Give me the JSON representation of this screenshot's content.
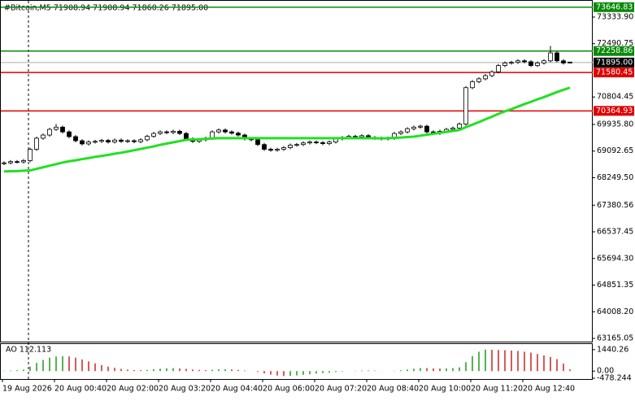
{
  "chart_data": {
    "type": "candlestick",
    "title": "#Bitcoin,M5  71908.94 71908.94 71860.26 71895.00",
    "open": [
      68700,
      68720,
      68760,
      68750,
      68790,
      69150,
      69500,
      69600,
      69780,
      69850,
      69700,
      69550,
      69420,
      69320,
      69380,
      69400,
      69430,
      69380,
      69440,
      69400,
      69420,
      69390,
      69450,
      69560,
      69650,
      69700,
      69680,
      69720,
      69650,
      69480,
      69400,
      69450,
      69500,
      69700,
      69760,
      69700,
      69660,
      69600,
      69480,
      69450,
      69300,
      69150,
      69120,
      69150,
      69200,
      69280,
      69300,
      69350,
      69380,
      69360,
      69330,
      69380,
      69480,
      69520,
      69560,
      69540,
      69580,
      69520,
      69500,
      69480,
      69500,
      69650,
      69700,
      69800,
      69850,
      69880,
      69700,
      69650,
      69720,
      69780,
      69820,
      69950,
      71100,
      71290,
      71380,
      71480,
      71600,
      71800,
      71880,
      71900,
      71950,
      71920,
      71800,
      71880,
      71950,
      72200,
      71950,
      71908.94
    ],
    "high": [
      68770,
      68810,
      68810,
      68840,
      69200,
      69550,
      69650,
      69830,
      69950,
      69900,
      69750,
      69600,
      69470,
      69430,
      69450,
      69480,
      69480,
      69490,
      69490,
      69470,
      69470,
      69500,
      69610,
      69700,
      69750,
      69750,
      69770,
      69770,
      69700,
      69530,
      69500,
      69550,
      69750,
      69810,
      69810,
      69750,
      69710,
      69650,
      69530,
      69500,
      69350,
      69200,
      69200,
      69250,
      69330,
      69350,
      69400,
      69430,
      69430,
      69410,
      69430,
      69530,
      69570,
      69610,
      69610,
      69630,
      69630,
      69570,
      69550,
      69550,
      69700,
      69750,
      69850,
      69900,
      69930,
      69930,
      69750,
      69770,
      69830,
      69870,
      70000,
      71150,
      71340,
      71430,
      71530,
      71650,
      71850,
      71930,
      71950,
      72000,
      72000,
      71970,
      71930,
      72000,
      72420,
      72250,
      72000,
      71908.94
    ],
    "low": [
      68650,
      68670,
      68700,
      68700,
      68740,
      69100,
      69450,
      69550,
      69730,
      69650,
      69500,
      69370,
      69270,
      69270,
      69330,
      69350,
      69330,
      69330,
      69350,
      69350,
      69340,
      69340,
      69400,
      69510,
      69600,
      69630,
      69630,
      69600,
      69430,
      69350,
      69350,
      69400,
      69450,
      69650,
      69650,
      69610,
      69550,
      69430,
      69400,
      69250,
      69100,
      69070,
      69070,
      69100,
      69150,
      69230,
      69250,
      69300,
      69310,
      69280,
      69280,
      69330,
      69430,
      69470,
      69490,
      69490,
      69470,
      69450,
      69430,
      69430,
      69450,
      69600,
      69650,
      69750,
      69800,
      69650,
      69600,
      69600,
      69670,
      69730,
      69770,
      69900,
      71050,
      71240,
      71330,
      71430,
      71550,
      71750,
      71830,
      71850,
      71870,
      71750,
      71750,
      71830,
      71900,
      71900,
      71830,
      71860.26
    ],
    "close": [
      68720,
      68760,
      68750,
      68790,
      69150,
      69500,
      69600,
      69780,
      69850,
      69700,
      69550,
      69420,
      69320,
      69380,
      69400,
      69430,
      69380,
      69440,
      69400,
      69420,
      69390,
      69450,
      69560,
      69650,
      69700,
      69680,
      69720,
      69650,
      69480,
      69400,
      69450,
      69500,
      69700,
      69760,
      69700,
      69660,
      69600,
      69480,
      69450,
      69300,
      69150,
      69120,
      69150,
      69200,
      69280,
      69300,
      69350,
      69380,
      69360,
      69330,
      69380,
      69480,
      69520,
      69560,
      69540,
      69580,
      69520,
      69500,
      69480,
      69500,
      69650,
      69700,
      69800,
      69850,
      69880,
      69700,
      69650,
      69720,
      69780,
      69820,
      69950,
      71100,
      71290,
      71380,
      71480,
      71600,
      71800,
      71880,
      71900,
      71950,
      71920,
      71800,
      71880,
      71950,
      72200,
      71950,
      71880,
      71895
    ],
    "ma": {
      "color": "#22e022",
      "values": [
        68450,
        68455,
        68460,
        68470,
        68480,
        68530,
        68580,
        68630,
        68680,
        68730,
        68770,
        68800,
        68840,
        68870,
        68910,
        68940,
        68970,
        69010,
        69040,
        69080,
        69120,
        69160,
        69200,
        69240,
        69290,
        69330,
        69370,
        69410,
        69450,
        69460,
        69470,
        69480,
        69490,
        69500,
        69500,
        69500,
        69500,
        69500,
        69500,
        69500,
        69500,
        69500,
        69500,
        69500,
        69500,
        69500,
        69500,
        69500,
        69500,
        69500,
        69500,
        69500,
        69500,
        69500,
        69500,
        69500,
        69500,
        69500,
        69490,
        69500,
        69510,
        69520,
        69535,
        69550,
        69580,
        69610,
        69640,
        69670,
        69700,
        69730,
        69760,
        69850,
        69930,
        70010,
        70100,
        70180,
        70270,
        70350,
        70420,
        70500,
        70580,
        70650,
        70730,
        70800,
        70880,
        70960,
        71030,
        71100
      ]
    },
    "ylim": [
      63037,
      73848
    ],
    "yticks": [
      {
        "value": 73333.9,
        "label": "73333.90"
      },
      {
        "value": 72490.75,
        "label": "72490.75"
      },
      {
        "value": 70804.45,
        "label": "70804.45"
      },
      {
        "value": 69935.8,
        "label": "69935.80"
      },
      {
        "value": 69092.65,
        "label": "69092.65"
      },
      {
        "value": 68249.5,
        "label": "68249.50"
      },
      {
        "value": 67380.56,
        "label": "67380.56"
      },
      {
        "value": 66537.45,
        "label": "66537.45"
      },
      {
        "value": 65694.3,
        "label": "65694.30"
      },
      {
        "value": 64851.35,
        "label": "64851.35"
      },
      {
        "value": 64008.2,
        "label": "64008.20"
      },
      {
        "value": 63165.05,
        "label": "63165.05"
      }
    ],
    "levels": [
      {
        "value": 73646.83,
        "label": "73646.83",
        "color": "#0a8a0a"
      },
      {
        "value": 72258.86,
        "label": "72258.86",
        "color": "#0a8a0a"
      },
      {
        "value": 71580.45,
        "label": "71580.45",
        "color": "#e00000"
      },
      {
        "value": 70364.93,
        "label": "70364.93",
        "color": "#e00000"
      }
    ],
    "current_price": {
      "value": 71895,
      "label": "71895.00"
    },
    "x_labels": [
      "19 Aug 2026",
      "20 Aug 00:40",
      "20 Aug 02:00",
      "20 Aug 03:20",
      "20 Aug 04:40",
      "20 Aug 06:00",
      "20 Aug 07:20",
      "20 Aug 08:40",
      "20 Aug 10:00",
      "20 Aug 11:20",
      "20 Aug 12:40"
    ],
    "ao": {
      "title": "AO 112.113",
      "ylim": [
        -533,
        1813
      ],
      "yticks": [
        {
          "value": 1440.26,
          "label": "1440.26"
        },
        {
          "value": 0,
          "label": "0.00"
        },
        {
          "value": -478.244,
          "label": "-478.244"
        }
      ],
      "up_color": "#1a9a1a",
      "down_color": "#cc2222",
      "values": [
        20,
        40,
        60,
        100,
        300,
        550,
        750,
        900,
        980,
        1000,
        980,
        900,
        780,
        650,
        520,
        400,
        300,
        220,
        150,
        100,
        70,
        60,
        80,
        120,
        160,
        190,
        200,
        180,
        150,
        110,
        80,
        70,
        90,
        120,
        130,
        110,
        80,
        40,
        0,
        -60,
        -150,
        -240,
        -300,
        -330,
        -320,
        -290,
        -250,
        -210,
        -170,
        -140,
        -110,
        -70,
        -30,
        0,
        20,
        40,
        40,
        30,
        10,
        0,
        20,
        60,
        110,
        160,
        200,
        200,
        180,
        170,
        180,
        200,
        250,
        600,
        1000,
        1300,
        1440,
        1430,
        1420,
        1400,
        1380,
        1350,
        1300,
        1240,
        1150,
        1050,
        950,
        800,
        500,
        112.113
      ]
    }
  }
}
